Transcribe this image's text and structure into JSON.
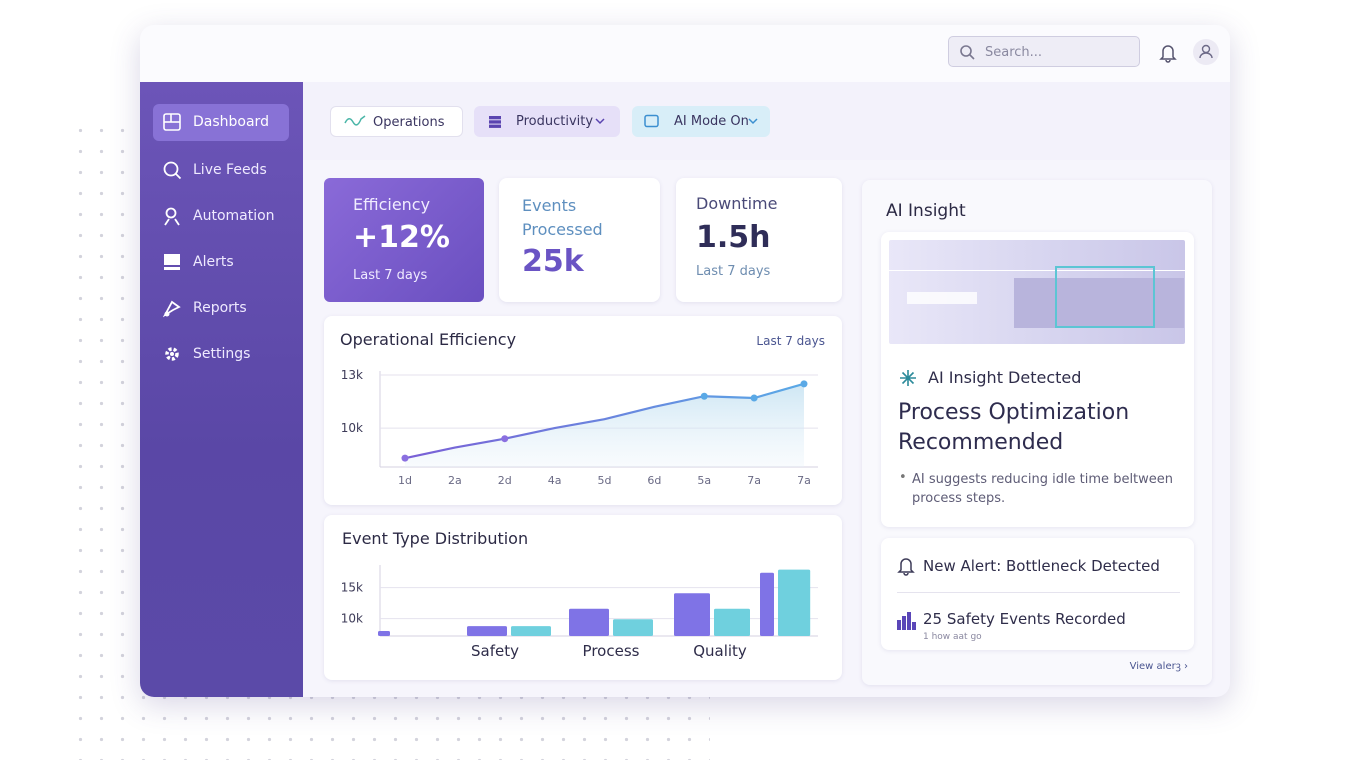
{
  "search_placeholder": "Search...",
  "nav": [
    "Dashboard",
    "Live Feeds",
    "Automation",
    "Alerts",
    "Reports",
    "Settings"
  ],
  "filters": [
    "Operations",
    "Productivity",
    "AI Mode On"
  ],
  "kpis": [
    {
      "label": "Efficiency",
      "value": "+12%",
      "sub": "Last 7 days"
    },
    {
      "label": "Events Processed",
      "value": "25k"
    },
    {
      "label": "Downtime",
      "value": "1.5h",
      "sub": "Last 7 days"
    }
  ],
  "chart_data": [
    {
      "type": "line",
      "title": "Operational Efficiency",
      "period": "Last 7 days",
      "categories": [
        "1d",
        "2a",
        "2d",
        "4a",
        "5d",
        "6d",
        "5a",
        "7a",
        "7a"
      ],
      "values": [
        8300,
        8900,
        9400,
        10000,
        10500,
        11200,
        11800,
        11700,
        12500
      ],
      "color": "#8a6fe0",
      "ylim": [
        7800,
        13000
      ],
      "yticks": [
        {
          "value": 13000,
          "label": "13k"
        },
        {
          "value": 10000,
          "label": "10k"
        }
      ],
      "grid": true
    },
    {
      "type": "bar",
      "title": "Event Type Distribution",
      "categories": [
        null,
        "Safety",
        "Process",
        "Quality",
        null
      ],
      "series": [
        {
          "color": "#7f73e6",
          "values": [
            8000,
            8800,
            11600,
            14100,
            17400
          ]
        },
        {
          "color": "#6fd0de",
          "values": [
            null,
            8800,
            9900,
            11600,
            17900
          ]
        }
      ],
      "ylim": [
        7200,
        18000
      ],
      "yticks": [
        {
          "value": 15000,
          "label": "15k"
        },
        {
          "value": 10000,
          "label": "10k"
        }
      ],
      "grid": true
    }
  ],
  "insight": {
    "title": "AI Insight",
    "detected": "AI Insight Detected",
    "headline": "Process Optimization Recommended",
    "bullet": "AI suggests reducing idle time beltween process steps.",
    "alert": "New Alert: Bottleneck Detected",
    "events": "25 Safety Events Recorded",
    "time": "1 how aat go",
    "link": "View alerꝫ ›"
  }
}
